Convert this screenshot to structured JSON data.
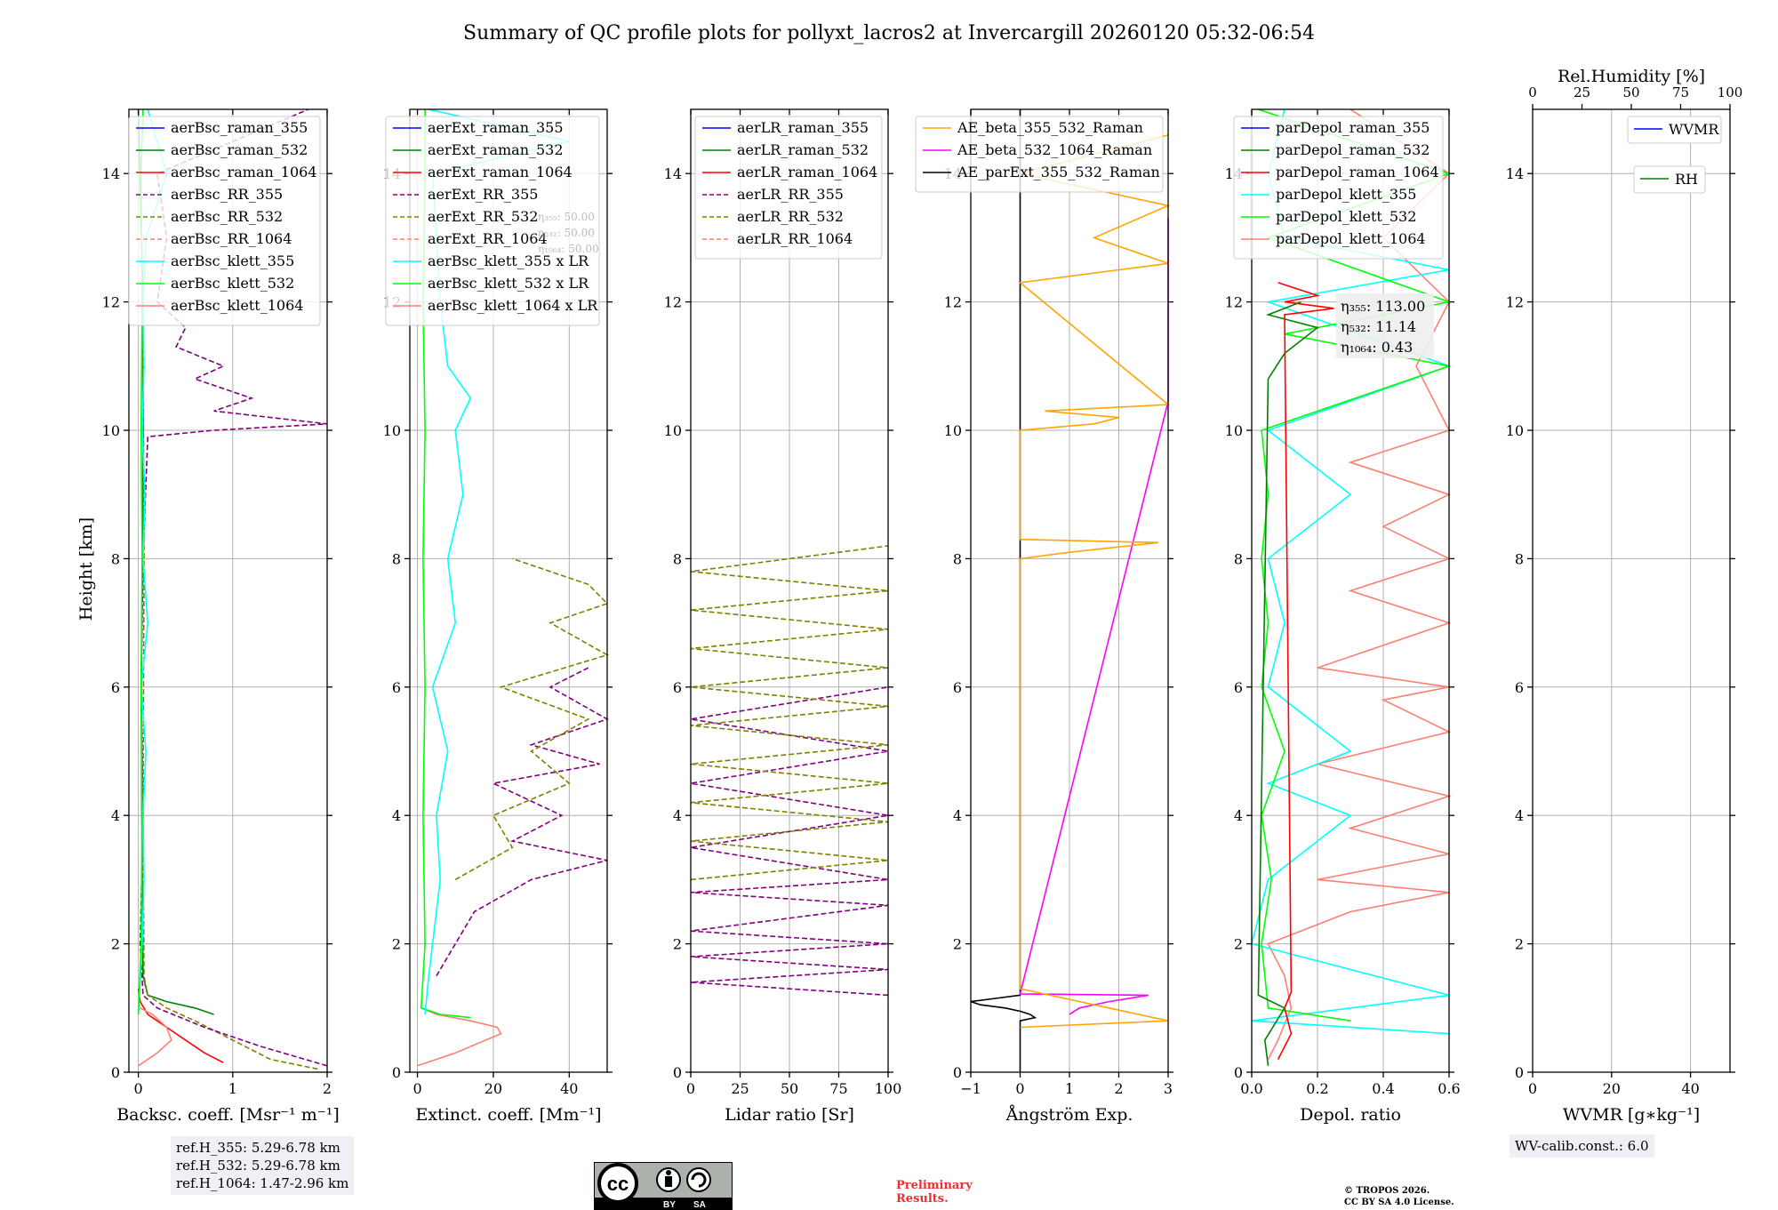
{
  "figure_title": "Summary of QC profile plots for pollyxt_lacros2 at Invercargill 20260120 05:32-06:54",
  "colors": {
    "blue": "#0000ff",
    "green": "#008000",
    "red": "#ff0000",
    "purple": "#800080",
    "olive": "#808000",
    "salmon": "#fa8072",
    "cyan": "#00ffff",
    "lime": "#00ff00",
    "orange": "#ffa500",
    "magenta": "#ff00ff",
    "black": "#000000"
  },
  "chart_data": [
    {
      "type": "line",
      "id": "bsc",
      "xlabel": "Backsc. coeff. [Msr⁻¹ m⁻¹]",
      "ylabel": "Height [km]",
      "xlim": [
        -0.1,
        2.0
      ],
      "ylim": [
        0,
        15
      ],
      "xticks": [
        0,
        1,
        2
      ],
      "yticks": [
        0,
        2,
        4,
        6,
        8,
        10,
        12,
        14
      ],
      "legend": [
        "aerBsc_raman_355",
        "aerBsc_raman_532",
        "aerBsc_raman_1064",
        "aerBsc_RR_355",
        "aerBsc_RR_532",
        "aerBsc_RR_1064",
        "aerBsc_klett_355",
        "aerBsc_klett_532",
        "aerBsc_klett_1064"
      ],
      "legend_colors": [
        "blue",
        "green",
        "red",
        "purple",
        "olive",
        "salmon",
        "cyan",
        "lime",
        "salmon"
      ],
      "legend_dashed": [
        false,
        false,
        false,
        true,
        true,
        true,
        false,
        false,
        false
      ],
      "series": [
        {
          "name": "aerBsc_raman_1064",
          "color": "red",
          "y": [
            0.15,
            0.3,
            0.5,
            0.7,
            0.9,
            1.1,
            1.3
          ],
          "x": [
            0.9,
            0.7,
            0.5,
            0.3,
            0.1,
            0.02,
            0.0
          ]
        },
        {
          "name": "aerBsc_raman_532",
          "color": "green",
          "y": [
            0.9,
            1.0,
            1.1,
            1.2,
            1.5,
            3,
            6,
            9,
            12,
            15
          ],
          "x": [
            0.8,
            0.6,
            0.3,
            0.1,
            0.05,
            0.04,
            0.03,
            0.05,
            0.05,
            0.0
          ]
        },
        {
          "name": "aerBsc_RR_532",
          "color": "olive",
          "dashed": true,
          "y": [
            0.05,
            0.2,
            0.5,
            0.8,
            1.0,
            1.2,
            1.5,
            4,
            8,
            12
          ],
          "x": [
            1.9,
            1.4,
            1.0,
            0.6,
            0.3,
            0.1,
            0.06,
            0.05,
            0.06,
            0.05
          ]
        },
        {
          "name": "aerBsc_RR_355",
          "color": "purple",
          "dashed": true,
          "y": [
            0.1,
            0.4,
            0.7,
            1.0,
            1.2,
            2,
            4,
            6,
            8,
            9.9,
            10.0,
            10.1,
            10.3,
            10.5,
            10.8,
            11.0,
            11.3,
            11.6,
            12,
            13,
            14,
            15
          ],
          "x": [
            2.0,
            1.3,
            0.7,
            0.2,
            0.05,
            0.02,
            0.05,
            0.03,
            0.05,
            0.1,
            0.8,
            2.0,
            0.8,
            1.2,
            0.6,
            0.9,
            0.4,
            0.5,
            0.2,
            0.3,
            0.2,
            1.8
          ]
        },
        {
          "name": "aerBsc_klett_355",
          "color": "cyan",
          "y": [
            0.9,
            2,
            3,
            4,
            5,
            6,
            7,
            8,
            9,
            10,
            11,
            12,
            13,
            14,
            15
          ],
          "x": [
            0.0,
            0.04,
            0.06,
            0.05,
            0.08,
            0.03,
            0.1,
            0.05,
            0.07,
            0.04,
            0.06,
            0.05,
            0.08,
            0.3,
            0.1
          ]
        },
        {
          "name": "aerBsc_klett_532",
          "color": "lime",
          "y": [
            0.9,
            2,
            4,
            6,
            8,
            10,
            12,
            14,
            15
          ],
          "x": [
            0.0,
            0.03,
            0.04,
            0.03,
            0.04,
            0.03,
            0.04,
            0.03,
            0.05
          ]
        },
        {
          "name": "aerBsc_klett_1064",
          "color": "salmon",
          "y": [
            0.1,
            0.3,
            0.5,
            0.7,
            0.9,
            1.0
          ],
          "x": [
            0.0,
            0.2,
            0.35,
            0.3,
            0.15,
            0.02
          ]
        }
      ]
    },
    {
      "type": "line",
      "id": "ext",
      "xlabel": "Extinct. coeff. [Mm⁻¹]",
      "xlim": [
        -2,
        50
      ],
      "ylim": [
        0,
        15
      ],
      "xticks": [
        0,
        20,
        40
      ],
      "yticks": [
        0,
        2,
        4,
        6,
        8,
        10,
        12,
        14
      ],
      "legend": [
        "aerExt_raman_355",
        "aerExt_raman_532",
        "aerExt_raman_1064",
        "aerExt_RR_355",
        "aerExt_RR_532",
        "aerExt_RR_1064",
        "aerBsc_klett_355 x LR",
        "aerBsc_klett_532 x LR",
        "aerBsc_klett_1064 x LR"
      ],
      "legend_colors": [
        "blue",
        "green",
        "red",
        "purple",
        "olive",
        "salmon",
        "cyan",
        "lime",
        "salmon"
      ],
      "legend_dashed": [
        false,
        false,
        false,
        true,
        true,
        true,
        false,
        false,
        false
      ],
      "lr_labels": [
        "η₃₅₅: 50.00",
        "η₅₃₂: 50.00",
        "η₁₀₆₄: 50.00"
      ],
      "series": [
        {
          "name": "aerBsc_klett_1064 x LR",
          "color": "salmon",
          "y": [
            0.1,
            0.3,
            0.5,
            0.6,
            0.7,
            0.8,
            0.9,
            1.0
          ],
          "x": [
            0,
            10,
            18,
            22,
            21,
            14,
            5,
            1
          ]
        },
        {
          "name": "aerBsc_klett_532 x LR",
          "color": "lime",
          "y": [
            0.85,
            0.9,
            1.0,
            2,
            4,
            6,
            8,
            10,
            12,
            14,
            15
          ],
          "x": [
            14,
            6,
            1,
            2,
            1.5,
            2,
            1.5,
            2,
            1.5,
            2,
            2
          ]
        },
        {
          "name": "aerBsc_klett_355 x LR",
          "color": "cyan",
          "y": [
            0.9,
            1.5,
            2,
            3,
            4,
            5,
            6,
            7,
            8,
            9,
            10,
            10.5,
            11,
            12,
            13,
            14,
            14.5,
            15
          ],
          "x": [
            2,
            3,
            4,
            6,
            5,
            8,
            4,
            10,
            8,
            12,
            10,
            14,
            8,
            6,
            5,
            4,
            40,
            3
          ]
        },
        {
          "name": "aerExt_RR_355",
          "color": "purple",
          "dashed": true,
          "y": [
            1.5,
            2.5,
            3.0,
            3.3,
            3.6,
            4.0,
            4.5,
            4.8,
            5.1,
            5.5,
            6.0,
            6.3
          ],
          "x": [
            5,
            15,
            30,
            50,
            25,
            38,
            20,
            48,
            30,
            50,
            35,
            45
          ]
        },
        {
          "name": "aerExt_RR_532",
          "color": "olive",
          "dashed": true,
          "y": [
            3.0,
            3.5,
            4.0,
            4.5,
            5.0,
            5.5,
            6.0,
            6.5,
            7.0,
            7.3,
            7.6,
            8.0
          ],
          "x": [
            10,
            25,
            20,
            40,
            30,
            45,
            22,
            50,
            35,
            50,
            45,
            25
          ]
        }
      ]
    },
    {
      "type": "line",
      "id": "lr",
      "xlabel": "Lidar ratio [Sr]",
      "xlim": [
        0,
        100
      ],
      "ylim": [
        0,
        15
      ],
      "xticks": [
        0,
        25,
        50,
        75,
        100
      ],
      "yticks": [
        0,
        2,
        4,
        6,
        8,
        10,
        12,
        14
      ],
      "legend": [
        "aerLR_raman_355",
        "aerLR_raman_532",
        "aerLR_raman_1064",
        "aerLR_RR_355",
        "aerLR_RR_532",
        "aerLR_RR_1064"
      ],
      "legend_colors": [
        "blue",
        "green",
        "red",
        "purple",
        "olive",
        "salmon"
      ],
      "legend_dashed": [
        false,
        false,
        false,
        true,
        true,
        true
      ],
      "series": [
        {
          "name": "aerLR_RR_355",
          "color": "purple",
          "dashed": true,
          "y": [
            1.2,
            1.4,
            1.6,
            1.8,
            2.0,
            2.2,
            2.6,
            2.8,
            3.0,
            3.5,
            4.0,
            4.5,
            5.0,
            5.5,
            6.0
          ],
          "x": [
            100,
            0,
            100,
            0,
            100,
            0,
            100,
            0,
            100,
            0,
            100,
            0,
            100,
            0,
            100
          ]
        },
        {
          "name": "aerLR_RR_532",
          "color": "olive",
          "dashed": true,
          "y": [
            3.0,
            3.3,
            3.6,
            3.9,
            4.2,
            4.5,
            4.8,
            5.1,
            5.4,
            5.7,
            6.0,
            6.3,
            6.6,
            6.9,
            7.2,
            7.5,
            7.8,
            8.2
          ],
          "x": [
            0,
            100,
            0,
            100,
            0,
            100,
            0,
            100,
            0,
            100,
            0,
            100,
            0,
            100,
            0,
            100,
            0,
            100
          ]
        }
      ]
    },
    {
      "type": "line",
      "id": "ae",
      "xlabel": "Ångström Exp.",
      "xlim": [
        -1,
        3
      ],
      "ylim": [
        0,
        15
      ],
      "xticks": [
        -1,
        0,
        1,
        2,
        3
      ],
      "yticks": [
        0,
        2,
        4,
        6,
        8,
        10,
        12,
        14
      ],
      "legend": [
        "AE_beta_355_532_Raman",
        "AE_beta_532_1064_Raman",
        "AE_parExt_355_532_Raman"
      ],
      "legend_colors": [
        "orange",
        "magenta",
        "black"
      ],
      "legend_dashed": [
        false,
        false,
        false
      ],
      "series": [
        {
          "name": "AE_parExt_355_532_Raman",
          "color": "black",
          "y": [
            0,
            0.8,
            0.85,
            0.9,
            0.95,
            1.0,
            1.05,
            1.1,
            1.15,
            1.2,
            1.25,
            15
          ],
          "x": [
            0,
            0,
            0.3,
            0.2,
            0.0,
            -0.3,
            -0.8,
            -1.0,
            -0.5,
            0.0,
            0.0,
            0.0
          ]
        },
        {
          "name": "AE_beta_532_1064_Raman",
          "color": "magenta",
          "y": [
            0.9,
            1.0,
            1.1,
            1.2,
            1.22,
            10.45,
            11.2,
            11.6,
            12.3,
            12.8,
            13.3
          ],
          "x": [
            1.0,
            1.2,
            1.8,
            2.6,
            0.0,
            3.0,
            3.0,
            3.0,
            3.0,
            3.0,
            3.0
          ]
        },
        {
          "name": "AE_beta_355_532_Raman",
          "color": "orange",
          "y": [
            0.7,
            0.8,
            1.3,
            8.0,
            8.1,
            8.25,
            8.3,
            8.45,
            10.0,
            10.1,
            10.2,
            10.3,
            10.4,
            12.3,
            12.6,
            13.0,
            13.5,
            14.0,
            14.6
          ],
          "x": [
            0.0,
            3.0,
            0.0,
            0.0,
            1.0,
            2.8,
            0.0,
            0.0,
            0.0,
            1.5,
            2.0,
            0.5,
            3.0,
            0.0,
            3.0,
            1.5,
            3.0,
            0.0,
            3.0
          ]
        }
      ]
    },
    {
      "type": "line",
      "id": "depol",
      "xlabel": "Depol. ratio",
      "xlim": [
        0,
        0.6
      ],
      "ylim": [
        0,
        15
      ],
      "xticks": [
        0.0,
        0.2,
        0.4,
        0.6
      ],
      "yticks": [
        0,
        2,
        4,
        6,
        8,
        10,
        12,
        14
      ],
      "legend": [
        "parDepol_raman_355",
        "parDepol_raman_532",
        "parDepol_raman_1064",
        "parDepol_klett_355",
        "parDepol_klett_532",
        "parDepol_klett_1064"
      ],
      "legend_colors": [
        "blue",
        "green",
        "red",
        "cyan",
        "lime",
        "salmon"
      ],
      "legend_dashed": [
        false,
        false,
        false,
        false,
        false,
        false
      ],
      "eta_labels": [
        "η₃₅₅: 113.00",
        "η₅₃₂: 11.14",
        "η₁₀₆₄: 0.43"
      ],
      "series": [
        {
          "name": "parDepol_klett_1064",
          "color": "salmon",
          "y": [
            0.2,
            0.5,
            1.0,
            1.5,
            2.0,
            2.5,
            2.8,
            3.0,
            3.4,
            3.8,
            4.3,
            4.8,
            5.3,
            5.8,
            6.0,
            6.3,
            7.0,
            7.5,
            8.0,
            8.5,
            9.0,
            9.5,
            10.0,
            11,
            12,
            13,
            14,
            15
          ],
          "x": [
            0.05,
            0.08,
            0.12,
            0.1,
            0.05,
            0.3,
            0.6,
            0.2,
            0.6,
            0.3,
            0.6,
            0.2,
            0.6,
            0.4,
            0.6,
            0.2,
            0.6,
            0.3,
            0.6,
            0.4,
            0.6,
            0.3,
            0.6,
            0.5,
            0.6,
            0.4,
            0.6,
            0.3
          ]
        },
        {
          "name": "parDepol_klett_355",
          "color": "cyan",
          "y": [
            0.6,
            0.8,
            1.2,
            2.0,
            3.0,
            4.0,
            4.5,
            5.0,
            6.0,
            7.0,
            8.0,
            9.0,
            10.0,
            11.0,
            12.0,
            12.5,
            13.0,
            14.0,
            15.0
          ],
          "x": [
            0.6,
            0.0,
            0.6,
            0.0,
            0.05,
            0.3,
            0.05,
            0.3,
            0.05,
            0.1,
            0.05,
            0.3,
            0.05,
            0.6,
            0.05,
            0.6,
            0.1,
            0.05,
            0.1
          ]
        },
        {
          "name": "parDepol_klett_532",
          "color": "lime",
          "y": [
            0.8,
            1.0,
            2.0,
            3.0,
            4.0,
            5.0,
            6.0,
            7.0,
            8.0,
            9.0,
            10.0,
            11.0,
            11.5,
            12.0,
            13.0,
            14.0,
            15.0
          ],
          "x": [
            0.3,
            0.05,
            0.03,
            0.06,
            0.03,
            0.1,
            0.03,
            0.05,
            0.03,
            0.05,
            0.03,
            0.6,
            0.1,
            0.6,
            0.05,
            0.6,
            0.02
          ]
        },
        {
          "name": "parDepol_raman_532",
          "color": "green",
          "y": [
            0.1,
            0.5,
            1.0,
            1.2,
            10.8,
            11.2,
            11.6,
            11.8,
            12.0
          ],
          "x": [
            0.05,
            0.04,
            0.1,
            0.02,
            0.05,
            0.1,
            0.2,
            0.05,
            0.15
          ]
        },
        {
          "name": "parDepol_raman_1064",
          "color": "red",
          "y": [
            0.2,
            0.6,
            1.0,
            1.25,
            11.8,
            11.9,
            12.0,
            12.1,
            12.3
          ],
          "x": [
            0.08,
            0.12,
            0.1,
            0.12,
            0.1,
            0.25,
            0.1,
            0.2,
            0.08
          ]
        }
      ]
    },
    {
      "type": "line",
      "id": "wv",
      "xlabel": "WVMR [g∗kg⁻¹]",
      "xlim": [
        0,
        50
      ],
      "ylim": [
        0,
        15
      ],
      "xticks": [
        0,
        20,
        40
      ],
      "yticks": [
        0,
        2,
        4,
        6,
        8,
        10,
        12,
        14
      ],
      "top_xlabel": "Rel.Humidity [%]",
      "top_xticks": [
        0,
        25,
        50,
        75,
        100
      ],
      "legend": [
        "WVMR",
        "RH"
      ],
      "legend_colors": [
        "blue",
        "green"
      ],
      "legend_dashed": [
        false,
        false
      ],
      "series": []
    }
  ],
  "annotations": {
    "ref_heights": [
      "ref.H_355: 5.29-6.78 km",
      "ref.H_532: 5.29-6.78 km",
      "ref.H_1064: 1.47-2.96 km"
    ],
    "wv_calib": "WV-calib.const.: 6.0",
    "cc_badge": "BY SA",
    "cc_by": "BY",
    "cc_sa": "SA",
    "cc_mark": "cc",
    "preliminary": [
      "Preliminary",
      "Results."
    ],
    "copyright": [
      "© TROPOS 2026.",
      "CC BY SA 4.0 License."
    ]
  }
}
